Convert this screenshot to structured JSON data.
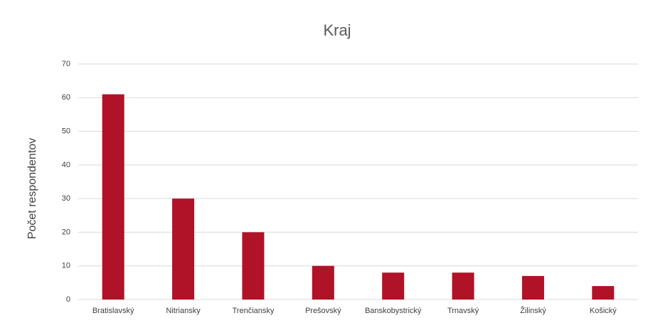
{
  "chart_data": {
    "type": "bar",
    "title": "Kraj",
    "y_label": "Počet respondentov",
    "categories": [
      "Bratislavský",
      "Nitriansky",
      "Trenčiansky",
      "Prešovský",
      "Banskobystrický",
      "Trnavský",
      "Žilinský",
      "Košický"
    ],
    "values": [
      61,
      30,
      20,
      10,
      8,
      8,
      7,
      4
    ],
    "color": "#b01228",
    "ylim": [
      0,
      70
    ],
    "yticks": [
      0,
      10,
      20,
      30,
      40,
      50,
      60,
      70
    ],
    "grid": true
  }
}
